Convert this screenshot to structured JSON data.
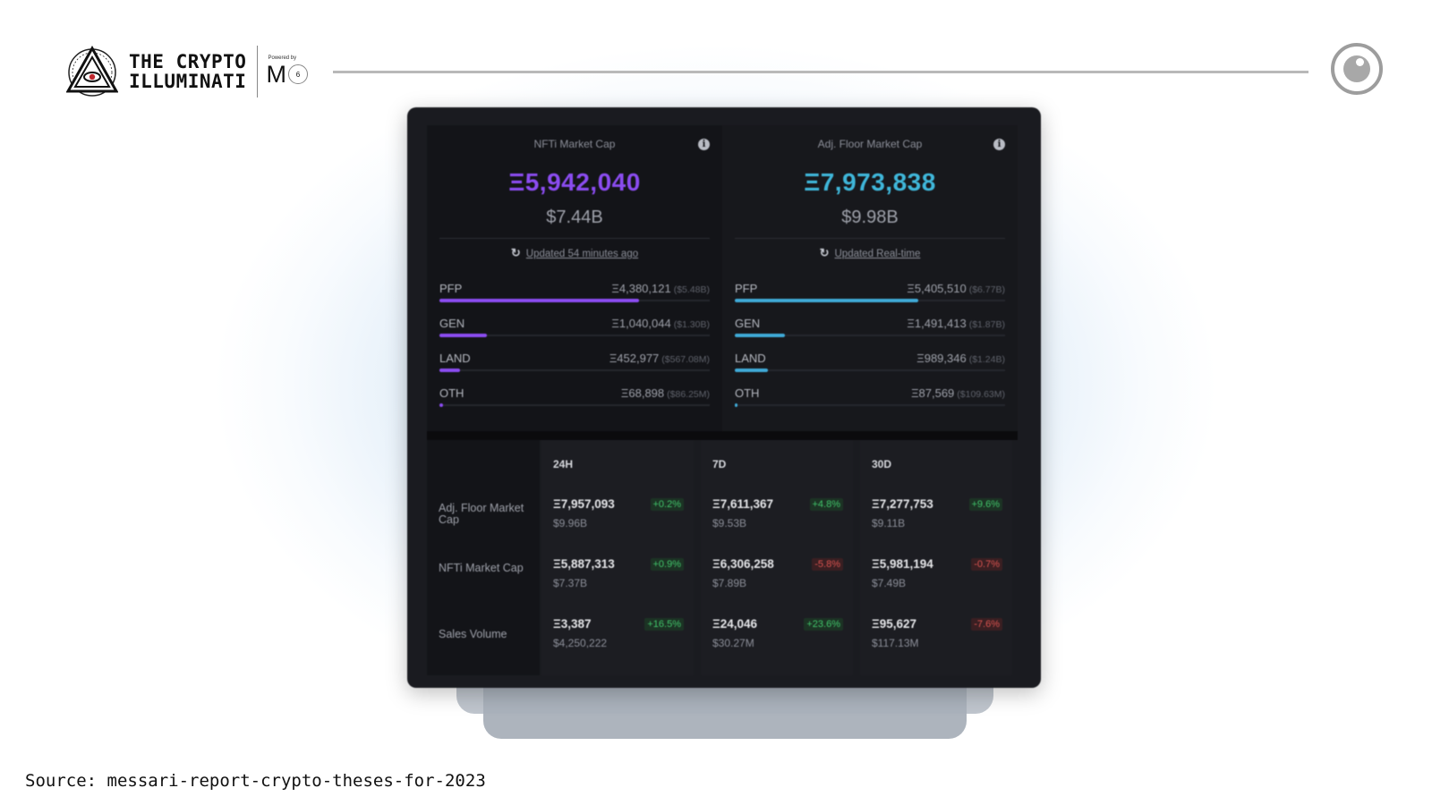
{
  "header": {
    "brand_line1": "THE CRYPTO",
    "brand_line2": "ILLUMINATI",
    "powered_label": "Powered by",
    "powered_logo": "M",
    "powered_badge": "6",
    "logo_icon": "eye-pyramid-logo",
    "right_icon": "eye-icon"
  },
  "dashboard": {
    "left": {
      "title": "NFTi Market Cap",
      "eth_value": "Ξ5,942,040",
      "usd_value": "$7.44B",
      "updated": "Updated 54 minutes ago",
      "accent": "#8b4cf0",
      "rows": [
        {
          "label": "PFP",
          "value": "Ξ4,380,121",
          "sub": "($5.48B)",
          "share": 0.737
        },
        {
          "label": "GEN",
          "value": "Ξ1,040,044",
          "sub": "($1.30B)",
          "share": 0.175
        },
        {
          "label": "LAND",
          "value": "Ξ452,977",
          "sub": "($567.08M)",
          "share": 0.076
        },
        {
          "label": "OTH",
          "value": "Ξ68,898",
          "sub": "($86.25M)",
          "share": 0.012
        }
      ]
    },
    "right": {
      "title": "Adj. Floor Market Cap",
      "eth_value": "Ξ7,973,838",
      "usd_value": "$9.98B",
      "updated": "Updated Real-time",
      "accent": "#3fa9d6",
      "rows": [
        {
          "label": "PFP",
          "value": "Ξ5,405,510",
          "sub": "($6.77B)",
          "share": 0.678
        },
        {
          "label": "GEN",
          "value": "Ξ1,491,413",
          "sub": "($1.87B)",
          "share": 0.187
        },
        {
          "label": "LAND",
          "value": "Ξ989,346",
          "sub": "($1.24B)",
          "share": 0.124
        },
        {
          "label": "OTH",
          "value": "Ξ87,569",
          "sub": "($109.63M)",
          "share": 0.011
        }
      ]
    },
    "table": {
      "columns": [
        "24H",
        "7D",
        "30D"
      ],
      "rows": [
        {
          "label": "Adj. Floor Market Cap",
          "cells": [
            {
              "eth": "Ξ7,957,093",
              "usd": "$9.96B",
              "pct": "+0.2%",
              "dir": "pos"
            },
            {
              "eth": "Ξ7,611,367",
              "usd": "$9.53B",
              "pct": "+4.8%",
              "dir": "pos"
            },
            {
              "eth": "Ξ7,277,753",
              "usd": "$9.11B",
              "pct": "+9.6%",
              "dir": "pos"
            }
          ]
        },
        {
          "label": "NFTi Market Cap",
          "cells": [
            {
              "eth": "Ξ5,887,313",
              "usd": "$7.37B",
              "pct": "+0.9%",
              "dir": "pos"
            },
            {
              "eth": "Ξ6,306,258",
              "usd": "$7.89B",
              "pct": "-5.8%",
              "dir": "neg"
            },
            {
              "eth": "Ξ5,981,194",
              "usd": "$7.49B",
              "pct": "-0.7%",
              "dir": "neg"
            }
          ]
        },
        {
          "label": "Sales Volume",
          "cells": [
            {
              "eth": "Ξ3,387",
              "usd": "$4,250,222",
              "pct": "+16.5%",
              "dir": "pos"
            },
            {
              "eth": "Ξ24,046",
              "usd": "$30.27M",
              "pct": "+23.6%",
              "dir": "pos"
            },
            {
              "eth": "Ξ95,627",
              "usd": "$117.13M",
              "pct": "-7.6%",
              "dir": "neg"
            }
          ]
        }
      ]
    }
  },
  "footer": {
    "source": "Source: messari-report-crypto-theses-for-2023"
  }
}
